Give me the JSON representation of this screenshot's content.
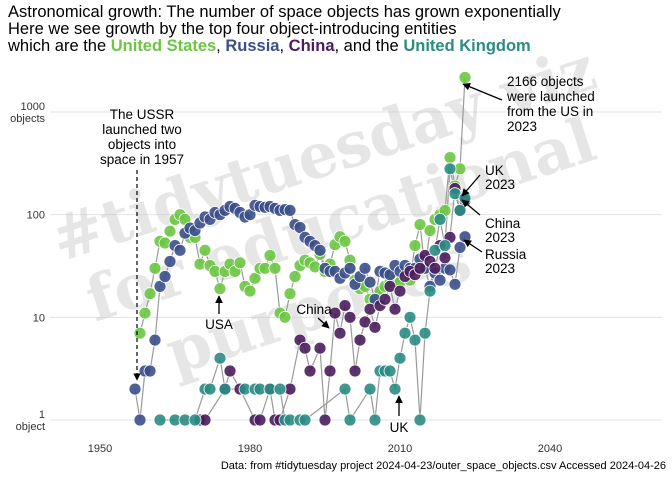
{
  "title": {
    "line1": "Astronomical growth: The number of space objects has grown exponentially",
    "line2": "Here we see growth by the top four object-introducing entities",
    "line3_prefix": "which are the",
    "sep1": ",",
    "sep2": ",",
    "sep3": ", and the",
    "entities": [
      {
        "name": "United States",
        "color": "#6cc644"
      },
      {
        "name": "Russia",
        "color": "#3b4f8a"
      },
      {
        "name": "China",
        "color": "#4b1d5e"
      },
      {
        "name": "United Kingdom",
        "color": "#2a8c83"
      }
    ]
  },
  "watermark": {
    "line1": "#tidytuesday viz",
    "line2": "for educational",
    "line3": "purposes"
  },
  "caption": "Data: from #tidytuesday project 2024-04-23/outer_space_objects.csv Accessed 2024-04-26",
  "annotations": {
    "ussr": [
      "The USSR",
      "launched two",
      "objects into",
      "space in 1957"
    ],
    "us2023": [
      "2166 objects",
      "were launched",
      "from the US in",
      "2023"
    ],
    "uk2023": [
      "UK",
      "2023"
    ],
    "china2023": [
      "China",
      "2023"
    ],
    "russia2023": [
      "Russia",
      "2023"
    ],
    "usa": "USA",
    "china": "China",
    "uk": "UK"
  },
  "chart_data": {
    "type": "scatter",
    "title": "Astronomical growth: The number of space objects has grown exponentially",
    "xlabel": "",
    "ylabel": "",
    "y_scale": "log10",
    "xlim": [
      1942,
      2066
    ],
    "ylim": [
      0.7,
      2700
    ],
    "x_ticks": [
      1950,
      1980,
      2010,
      2040
    ],
    "y_ticks": [
      {
        "value": 1,
        "label": [
          "1",
          "object"
        ]
      },
      {
        "value": 10,
        "label": [
          "10"
        ]
      },
      {
        "value": 100,
        "label": [
          "100"
        ]
      },
      {
        "value": 1000,
        "label": [
          "1000",
          "objects"
        ]
      }
    ],
    "series": [
      {
        "name": "United States",
        "color": "#6cc644",
        "points": [
          [
            1958,
            7
          ],
          [
            1959,
            11
          ],
          [
            1960,
            17
          ],
          [
            1961,
            30
          ],
          [
            1962,
            55
          ],
          [
            1963,
            53
          ],
          [
            1964,
            69
          ],
          [
            1965,
            90
          ],
          [
            1966,
            100
          ],
          [
            1967,
            90
          ],
          [
            1968,
            60
          ],
          [
            1969,
            60
          ],
          [
            1970,
            33
          ],
          [
            1971,
            45
          ],
          [
            1972,
            32
          ],
          [
            1973,
            28
          ],
          [
            1974,
            19
          ],
          [
            1975,
            28
          ],
          [
            1976,
            33
          ],
          [
            1977,
            28
          ],
          [
            1978,
            34
          ],
          [
            1979,
            20
          ],
          [
            1980,
            18
          ],
          [
            1981,
            24
          ],
          [
            1982,
            30
          ],
          [
            1983,
            30
          ],
          [
            1984,
            40
          ],
          [
            1985,
            30
          ],
          [
            1986,
            11
          ],
          [
            1987,
            10
          ],
          [
            1988,
            17
          ],
          [
            1989,
            25
          ],
          [
            1990,
            32
          ],
          [
            1991,
            36
          ],
          [
            1992,
            34
          ],
          [
            1993,
            31
          ],
          [
            1994,
            41
          ],
          [
            1995,
            28
          ],
          [
            1996,
            33
          ],
          [
            1997,
            51
          ],
          [
            1998,
            61
          ],
          [
            1999,
            55
          ],
          [
            2000,
            36
          ],
          [
            2001,
            23
          ],
          [
            2002,
            19
          ],
          [
            2003,
            20
          ],
          [
            2004,
            15
          ],
          [
            2005,
            14
          ],
          [
            2006,
            18
          ],
          [
            2007,
            20
          ],
          [
            2008,
            22
          ],
          [
            2009,
            24
          ],
          [
            2010,
            22
          ],
          [
            2011,
            27
          ],
          [
            2012,
            23
          ],
          [
            2013,
            50
          ],
          [
            2014,
            80
          ],
          [
            2015,
            30
          ],
          [
            2016,
            70
          ],
          [
            2017,
            90
          ],
          [
            2018,
            100
          ],
          [
            2019,
            110
          ],
          [
            2020,
            360
          ],
          [
            2021,
            190
          ],
          [
            2022,
            280
          ],
          [
            2023,
            2166
          ]
        ]
      },
      {
        "name": "Russia",
        "color": "#3b4f8a",
        "points": [
          [
            1957,
            2
          ],
          [
            1958,
            1
          ],
          [
            1959,
            3
          ],
          [
            1960,
            3
          ],
          [
            1961,
            6
          ],
          [
            1962,
            20
          ],
          [
            1963,
            25
          ],
          [
            1964,
            35
          ],
          [
            1965,
            50
          ],
          [
            1966,
            45
          ],
          [
            1967,
            66
          ],
          [
            1968,
            74
          ],
          [
            1969,
            70
          ],
          [
            1970,
            83
          ],
          [
            1971,
            95
          ],
          [
            1972,
            90
          ],
          [
            1973,
            105
          ],
          [
            1974,
            100
          ],
          [
            1975,
            110
          ],
          [
            1976,
            120
          ],
          [
            1977,
            115
          ],
          [
            1978,
            105
          ],
          [
            1979,
            95
          ],
          [
            1980,
            100
          ],
          [
            1981,
            123
          ],
          [
            1982,
            120
          ],
          [
            1983,
            118
          ],
          [
            1984,
            120
          ],
          [
            1985,
            115
          ],
          [
            1986,
            110
          ],
          [
            1987,
            112
          ],
          [
            1988,
            110
          ],
          [
            1989,
            80
          ],
          [
            1990,
            75
          ],
          [
            1991,
            60
          ],
          [
            1992,
            55
          ],
          [
            1993,
            50
          ],
          [
            1994,
            45
          ],
          [
            1995,
            30
          ],
          [
            1996,
            28
          ],
          [
            1997,
            28
          ],
          [
            1998,
            24
          ],
          [
            1999,
            27
          ],
          [
            2000,
            30
          ],
          [
            2001,
            21
          ],
          [
            2002,
            25
          ],
          [
            2003,
            30
          ],
          [
            2004,
            22
          ],
          [
            2005,
            15
          ],
          [
            2006,
            28
          ],
          [
            2007,
            27
          ],
          [
            2008,
            26
          ],
          [
            2009,
            32
          ],
          [
            2010,
            28
          ],
          [
            2011,
            32
          ],
          [
            2012,
            30
          ],
          [
            2013,
            30
          ],
          [
            2014,
            37
          ],
          [
            2015,
            30
          ],
          [
            2016,
            20
          ],
          [
            2017,
            27
          ],
          [
            2018,
            23
          ],
          [
            2019,
            30
          ],
          [
            2020,
            29
          ],
          [
            2021,
            21
          ],
          [
            2022,
            48
          ],
          [
            2023,
            61
          ]
        ]
      },
      {
        "name": "China",
        "color": "#4b1d5e",
        "points": [
          [
            1970,
            1
          ],
          [
            1971,
            1
          ],
          [
            1975,
            2
          ],
          [
            1976,
            3
          ],
          [
            1978,
            2
          ],
          [
            1981,
            1
          ],
          [
            1982,
            1
          ],
          [
            1984,
            2
          ],
          [
            1985,
            1
          ],
          [
            1986,
            1
          ],
          [
            1988,
            2
          ],
          [
            1990,
            6
          ],
          [
            1991,
            5
          ],
          [
            1992,
            3
          ],
          [
            1994,
            5
          ],
          [
            1995,
            1
          ],
          [
            1996,
            3
          ],
          [
            1997,
            11
          ],
          [
            1998,
            7
          ],
          [
            1999,
            13
          ],
          [
            2000,
            10
          ],
          [
            2001,
            3
          ],
          [
            2002,
            6
          ],
          [
            2003,
            9
          ],
          [
            2004,
            12
          ],
          [
            2005,
            8
          ],
          [
            2006,
            13
          ],
          [
            2007,
            15
          ],
          [
            2008,
            20
          ],
          [
            2009,
            12
          ],
          [
            2010,
            18
          ],
          [
            2011,
            25
          ],
          [
            2012,
            28
          ],
          [
            2013,
            26
          ],
          [
            2014,
            30
          ],
          [
            2015,
            40
          ],
          [
            2016,
            35
          ],
          [
            2017,
            30
          ],
          [
            2018,
            50
          ],
          [
            2019,
            38
          ],
          [
            2020,
            60
          ],
          [
            2021,
            180
          ],
          [
            2022,
            110
          ],
          [
            2023,
            137
          ]
        ]
      },
      {
        "name": "United Kingdom",
        "color": "#2a8c83",
        "points": [
          [
            1962,
            1
          ],
          [
            1965,
            1
          ],
          [
            1967,
            1
          ],
          [
            1969,
            1
          ],
          [
            1971,
            2
          ],
          [
            1972,
            2
          ],
          [
            1974,
            4
          ],
          [
            1975,
            2
          ],
          [
            1979,
            2
          ],
          [
            1981,
            2
          ],
          [
            1982,
            2
          ],
          [
            1984,
            2
          ],
          [
            1986,
            2
          ],
          [
            1987,
            1
          ],
          [
            1988,
            1
          ],
          [
            1990,
            1
          ],
          [
            1991,
            1
          ],
          [
            1999,
            2
          ],
          [
            2000,
            1
          ],
          [
            2004,
            2
          ],
          [
            2005,
            1
          ],
          [
            2006,
            3
          ],
          [
            2007,
            3
          ],
          [
            2008,
            3
          ],
          [
            2009,
            2
          ],
          [
            2010,
            4
          ],
          [
            2011,
            7
          ],
          [
            2012,
            10
          ],
          [
            2013,
            6
          ],
          [
            2014,
            1
          ],
          [
            2015,
            7
          ],
          [
            2016,
            18
          ],
          [
            2017,
            45
          ],
          [
            2018,
            90
          ],
          [
            2019,
            50
          ],
          [
            2020,
            280
          ],
          [
            2021,
            160
          ],
          [
            2022,
            110
          ],
          [
            2023,
            145
          ]
        ]
      }
    ]
  }
}
